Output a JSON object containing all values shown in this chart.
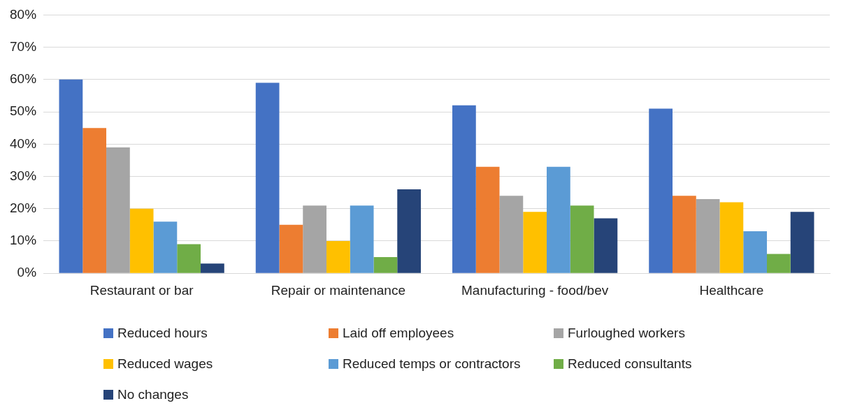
{
  "chart_data": {
    "type": "bar",
    "categories": [
      "Restaurant or bar",
      "Repair or maintenance",
      "Manufacturing - food/bev",
      "Healthcare"
    ],
    "series": [
      {
        "name": "Reduced hours",
        "color": "#4472c4",
        "values": [
          60,
          59,
          52,
          51
        ]
      },
      {
        "name": "Laid off employees",
        "color": "#ed7d31",
        "values": [
          45,
          15,
          33,
          24
        ]
      },
      {
        "name": "Furloughed workers",
        "color": "#a5a5a5",
        "values": [
          39,
          21,
          24,
          23
        ]
      },
      {
        "name": "Reduced wages",
        "color": "#ffc000",
        "values": [
          20,
          10,
          19,
          22
        ]
      },
      {
        "name": "Reduced temps or contractors",
        "color": "#5b9bd5",
        "values": [
          16,
          21,
          33,
          13
        ]
      },
      {
        "name": "Reduced consultants",
        "color": "#70ad47",
        "values": [
          9,
          5,
          21,
          6
        ]
      },
      {
        "name": "No changes",
        "color": "#264478",
        "values": [
          3,
          26,
          17,
          19
        ]
      }
    ],
    "ylim": [
      0,
      80
    ],
    "yticks": [
      {
        "value": 0,
        "label": "0%"
      },
      {
        "value": 10,
        "label": "10%"
      },
      {
        "value": 20,
        "label": "20%"
      },
      {
        "value": 30,
        "label": "30%"
      },
      {
        "value": 40,
        "label": "40%"
      },
      {
        "value": 50,
        "label": "50%"
      },
      {
        "value": 60,
        "label": "60%"
      },
      {
        "value": 70,
        "label": "70%"
      },
      {
        "value": 80,
        "label": "80%"
      }
    ],
    "grid": "y",
    "legend": "bottom"
  }
}
